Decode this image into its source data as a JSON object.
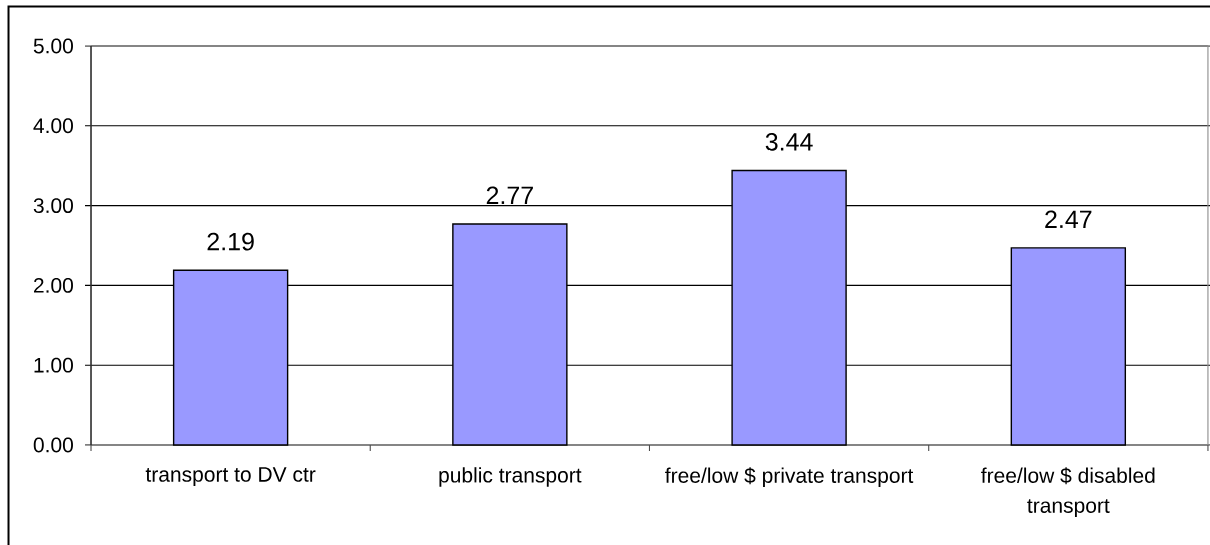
{
  "chart_data": {
    "type": "bar",
    "categories": [
      "transport to DV ctr",
      "public transport",
      "free/low $ private transport",
      "free/low $ disabled transport"
    ],
    "values": [
      2.19,
      2.77,
      3.44,
      2.47
    ],
    "color": "#9999ff",
    "ylim": [
      0,
      5
    ],
    "yticks": [
      {
        "value": 0,
        "label": "0.00"
      },
      {
        "value": 1,
        "label": "1.00"
      },
      {
        "value": 2,
        "label": "2.00"
      },
      {
        "value": 3,
        "label": "3.00"
      },
      {
        "value": 4,
        "label": "4.00"
      },
      {
        "value": 5,
        "label": "5.00"
      }
    ],
    "grid": "y",
    "data_labels": true
  }
}
